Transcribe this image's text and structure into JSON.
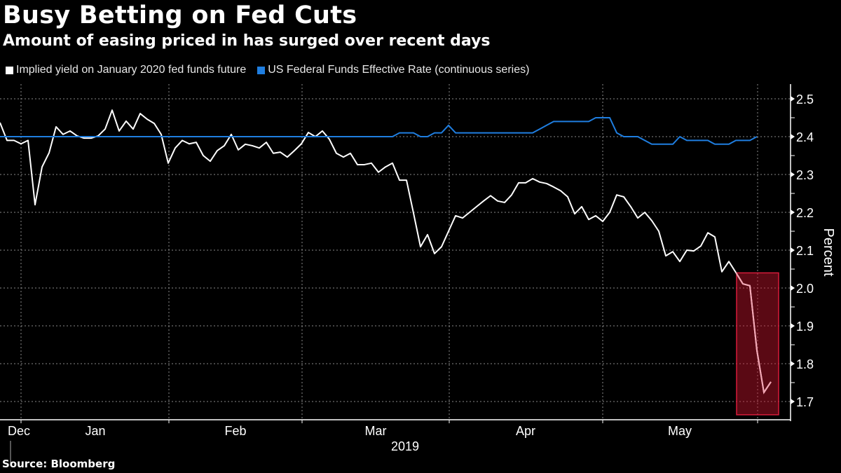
{
  "header": {
    "title": "Busy Betting on Fed Cuts",
    "subtitle": "Amount of easing priced in has surged over recent days"
  },
  "legend": [
    {
      "label": "Implied yield on January 2020 fed funds future",
      "color": "#ffffff"
    },
    {
      "label": "US Federal Funds Effective Rate (continuous series)",
      "color": "#1f7ee0"
    }
  ],
  "footer": {
    "source": "Source: Bloomberg"
  },
  "chart_data": {
    "type": "line",
    "title": "Busy Betting on Fed Cuts",
    "subtitle": "Amount of easing priced in has surged over recent days",
    "xlabel": "2019",
    "ylabel": "Percent",
    "ylim": [
      1.66,
      2.54
    ],
    "yticks": [
      1.7,
      1.8,
      1.9,
      2.0,
      2.1,
      2.2,
      2.3,
      2.4,
      2.5
    ],
    "ytick_labels": [
      "1.7",
      "1.8",
      "1.9",
      "2.0",
      "2.1",
      "2.2",
      "2.3",
      "2.4",
      "2.5"
    ],
    "x_period_labels": [
      "Dec",
      "Jan",
      "Feb",
      "Mar",
      "Apr",
      "May"
    ],
    "x_year_label": "2019",
    "grid": true,
    "legend_position": "top-left",
    "y_axis_position": "right",
    "highlight": {
      "description": "Recent sharp drop highlighted",
      "x_index_range": [
        105,
        112
      ],
      "y_range": [
        1.665,
        2.04
      ],
      "color": "#d81b3a"
    },
    "x_index_range": [
      0,
      112
    ],
    "series": [
      {
        "name": "Implied yield on January 2020 fed funds future",
        "color": "#ffffff",
        "values": [
          2.437,
          2.39,
          2.39,
          2.381,
          2.39,
          2.22,
          2.32,
          2.357,
          2.426,
          2.406,
          2.415,
          2.402,
          2.396,
          2.396,
          2.402,
          2.42,
          2.47,
          2.415,
          2.441,
          2.42,
          2.461,
          2.446,
          2.435,
          2.406,
          2.33,
          2.37,
          2.39,
          2.381,
          2.385,
          2.35,
          2.335,
          2.363,
          2.376,
          2.406,
          2.365,
          2.38,
          2.376,
          2.37,
          2.385,
          2.356,
          2.359,
          2.346,
          2.363,
          2.381,
          2.411,
          2.4,
          2.415,
          2.393,
          2.356,
          2.346,
          2.356,
          2.326,
          2.326,
          2.33,
          2.306,
          2.32,
          2.33,
          2.285,
          2.285,
          2.198,
          2.109,
          2.141,
          2.091,
          2.109,
          2.15,
          2.191,
          2.185,
          2.2,
          2.215,
          2.23,
          2.244,
          2.23,
          2.226,
          2.246,
          2.278,
          2.278,
          2.289,
          2.28,
          2.276,
          2.267,
          2.257,
          2.241,
          2.196,
          2.215,
          2.181,
          2.191,
          2.176,
          2.2,
          2.246,
          2.241,
          2.215,
          2.185,
          2.2,
          2.178,
          2.15,
          2.085,
          2.096,
          2.07,
          2.1,
          2.098,
          2.111,
          2.146,
          2.135,
          2.043,
          2.07,
          2.041,
          2.011,
          2.006,
          1.835,
          1.724,
          1.752
        ]
      },
      {
        "name": "US Federal Funds Effective Rate (continuous series)",
        "color": "#1f7ee0",
        "values": [
          2.4,
          2.4,
          2.4,
          2.4,
          2.4,
          2.4,
          2.4,
          2.4,
          2.4,
          2.4,
          2.4,
          2.4,
          2.4,
          2.4,
          2.4,
          2.4,
          2.4,
          2.4,
          2.4,
          2.4,
          2.4,
          2.4,
          2.4,
          2.4,
          2.4,
          2.4,
          2.4,
          2.4,
          2.4,
          2.4,
          2.4,
          2.4,
          2.4,
          2.4,
          2.4,
          2.4,
          2.4,
          2.4,
          2.4,
          2.4,
          2.4,
          2.4,
          2.4,
          2.4,
          2.4,
          2.4,
          2.4,
          2.4,
          2.4,
          2.4,
          2.4,
          2.4,
          2.4,
          2.4,
          2.4,
          2.4,
          2.4,
          2.41,
          2.41,
          2.41,
          2.4,
          2.4,
          2.41,
          2.41,
          2.43,
          2.41,
          2.41,
          2.41,
          2.41,
          2.41,
          2.41,
          2.41,
          2.41,
          2.41,
          2.41,
          2.41,
          2.41,
          2.42,
          2.43,
          2.44,
          2.44,
          2.44,
          2.44,
          2.44,
          2.44,
          2.45,
          2.45,
          2.45,
          2.41,
          2.4,
          2.4,
          2.4,
          2.39,
          2.38,
          2.38,
          2.38,
          2.38,
          2.4,
          2.39,
          2.39,
          2.39,
          2.39,
          2.38,
          2.38,
          2.38,
          2.39,
          2.39,
          2.39,
          2.4
        ]
      }
    ]
  }
}
